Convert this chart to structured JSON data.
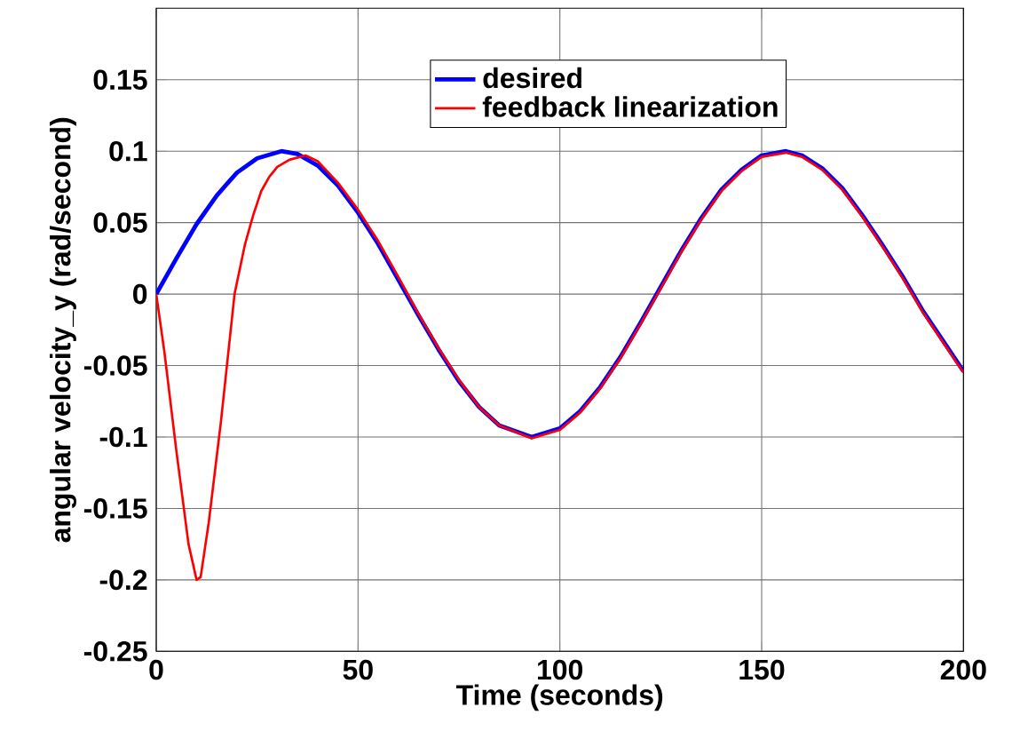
{
  "chart_data": {
    "type": "line",
    "xlabel": "Time (seconds)",
    "ylabel": "angular velocity_y (rad/second)",
    "xlim": [
      0,
      200
    ],
    "ylim": [
      -0.25,
      0.2
    ],
    "xticks": [
      0,
      50,
      100,
      150,
      200
    ],
    "yticks": [
      -0.25,
      -0.2,
      -0.15,
      -0.1,
      -0.05,
      0,
      0.05,
      0.1,
      0.15
    ],
    "grid": true,
    "legend": "top",
    "line_style": "solid",
    "marker": "none",
    "series": [
      {
        "name": "desired",
        "color": "#0000ff",
        "x": [
          0,
          5,
          10,
          15,
          20,
          25,
          31,
          35,
          40,
          45,
          50,
          55,
          60,
          65,
          70,
          75,
          80,
          85,
          93,
          100,
          105,
          110,
          115,
          120,
          125,
          130,
          135,
          140,
          145,
          150,
          156,
          160,
          165,
          170,
          175,
          180,
          185,
          190,
          195,
          200
        ],
        "values": [
          0,
          0.025,
          0.049,
          0.069,
          0.085,
          0.095,
          0.1,
          0.098,
          0.09,
          0.076,
          0.057,
          0.035,
          0.01,
          -0.015,
          -0.039,
          -0.061,
          -0.079,
          -0.092,
          -0.1,
          -0.094,
          -0.082,
          -0.065,
          -0.044,
          -0.02,
          0.005,
          0.03,
          0.053,
          0.073,
          0.087,
          0.097,
          0.1,
          0.097,
          0.088,
          0.074,
          0.055,
          0.034,
          0.012,
          -0.012,
          -0.033,
          -0.054
        ]
      },
      {
        "name": "feedback linearization",
        "color": "#ff0000",
        "x": [
          0,
          2,
          5,
          8,
          10,
          11,
          13,
          16,
          19.4,
          22,
          24,
          26,
          28,
          30,
          33,
          37,
          40,
          45,
          50,
          55,
          60,
          65,
          70,
          75,
          80,
          85,
          93,
          100,
          105,
          110,
          115,
          120,
          125,
          130,
          135,
          140,
          145,
          150,
          156,
          160,
          165,
          170,
          175,
          180,
          185,
          190,
          195,
          200
        ],
        "values": [
          0,
          -0.04,
          -0.11,
          -0.175,
          -0.2,
          -0.198,
          -0.16,
          -0.09,
          0,
          0.035,
          0.055,
          0.072,
          0.082,
          0.089,
          0.094,
          0.097,
          0.093,
          0.078,
          0.059,
          0.037,
          0.012,
          -0.014,
          -0.038,
          -0.06,
          -0.079,
          -0.092,
          -0.101,
          -0.095,
          -0.083,
          -0.066,
          -0.045,
          -0.021,
          0.004,
          0.029,
          0.052,
          0.072,
          0.086,
          0.096,
          0.099,
          0.096,
          0.087,
          0.073,
          0.054,
          0.033,
          0.011,
          -0.013,
          -0.034,
          -0.055
        ]
      }
    ]
  }
}
